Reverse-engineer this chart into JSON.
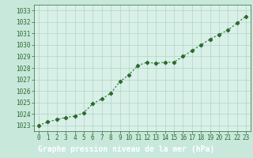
{
  "x": [
    0,
    1,
    2,
    3,
    4,
    5,
    6,
    7,
    8,
    9,
    10,
    11,
    12,
    13,
    14,
    15,
    16,
    17,
    18,
    19,
    20,
    21,
    22,
    23
  ],
  "y": [
    1023.0,
    1023.3,
    1023.5,
    1023.7,
    1023.8,
    1024.1,
    1024.9,
    1025.3,
    1025.8,
    1026.8,
    1027.4,
    1028.2,
    1028.5,
    1028.4,
    1028.5,
    1028.5,
    1029.0,
    1029.5,
    1030.0,
    1030.5,
    1030.9,
    1031.3,
    1031.9,
    1032.5
  ],
  "ylim": [
    1022.5,
    1033.5
  ],
  "xlim": [
    -0.5,
    23.5
  ],
  "yticks": [
    1023,
    1024,
    1025,
    1026,
    1027,
    1028,
    1029,
    1030,
    1031,
    1032,
    1033
  ],
  "xticks": [
    0,
    1,
    2,
    3,
    4,
    5,
    6,
    7,
    8,
    9,
    10,
    11,
    12,
    13,
    14,
    15,
    16,
    17,
    18,
    19,
    20,
    21,
    22,
    23
  ],
  "xtick_labels": [
    "0",
    "1",
    "2",
    "3",
    "4",
    "5",
    "6",
    "7",
    "8",
    "9",
    "10",
    "11",
    "12",
    "13",
    "14",
    "15",
    "16",
    "17",
    "18",
    "19",
    "20",
    "21",
    "22",
    "23"
  ],
  "line_color": "#2d6a2d",
  "marker": "D",
  "marker_size": 2.2,
  "bg_color": "#c8e8dc",
  "plot_bg_color": "#d8f0e8",
  "grid_color": "#b0d4c4",
  "xlabel": "Graphe pression niveau de la mer (hPa)",
  "xlabel_bg": "#2d6a2d",
  "xlabel_fg": "#ffffff",
  "tick_color": "#2d6a2d",
  "tick_fontsize": 5.5,
  "label_fontsize": 7.0,
  "line_width": 0.8
}
